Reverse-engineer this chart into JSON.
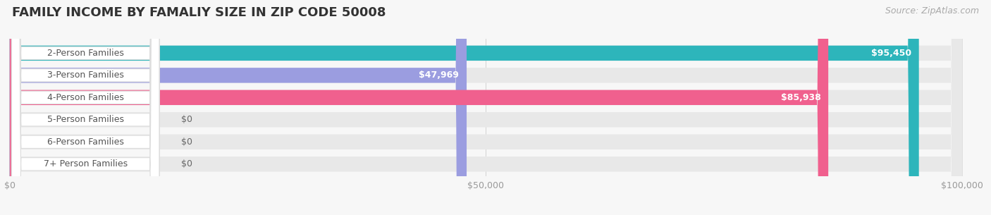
{
  "title": "FAMILY INCOME BY FAMALIY SIZE IN ZIP CODE 50008",
  "source": "Source: ZipAtlas.com",
  "categories": [
    "2-Person Families",
    "3-Person Families",
    "4-Person Families",
    "5-Person Families",
    "6-Person Families",
    "7+ Person Families"
  ],
  "values": [
    95450,
    47969,
    85938,
    0,
    0,
    0
  ],
  "bar_colors": [
    "#2db5bb",
    "#9b9de0",
    "#f0608e",
    "#f5c99a",
    "#f5a8a8",
    "#a8c8f0"
  ],
  "value_labels": [
    "$95,450",
    "$47,969",
    "$85,938",
    "$0",
    "$0",
    "$0"
  ],
  "max_value": 100000,
  "xticks": [
    0,
    50000,
    100000
  ],
  "xticklabels": [
    "$0",
    "$50,000",
    "$100,000"
  ],
  "background_color": "#f7f7f7",
  "bar_bg_color": "#e8e8e8",
  "label_bg_color": "#ffffff",
  "title_fontsize": 13,
  "source_fontsize": 9,
  "label_fontsize": 9,
  "value_fontsize": 9
}
